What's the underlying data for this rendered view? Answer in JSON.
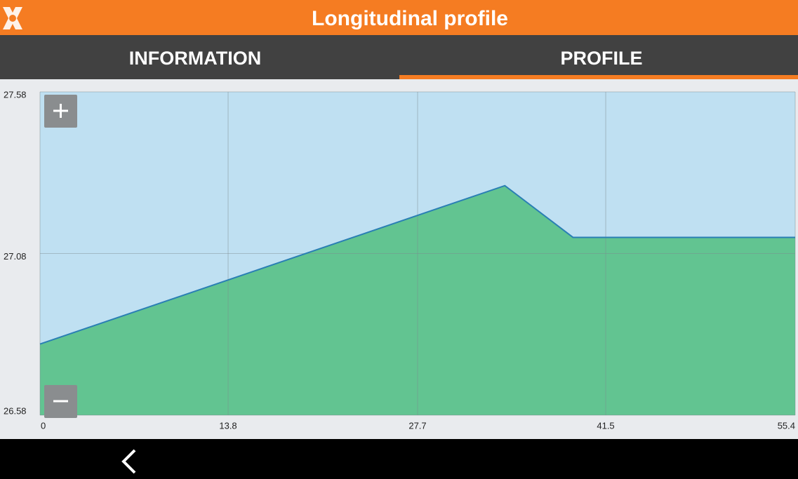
{
  "header": {
    "title": "Longitudinal profile"
  },
  "tabs": [
    "INFORMATION",
    "PROFILE"
  ],
  "chart_data": {
    "type": "area",
    "x": [
      0,
      34.1,
      39.1,
      55.4
    ],
    "values": [
      26.8,
      27.29,
      27.13,
      27.13
    ],
    "color": "#62c491",
    "line_color": "#2a7fb4",
    "background_color": "#bfe0f2",
    "xlim": [
      0,
      55.4
    ],
    "xticks": [
      0,
      13.8,
      27.7,
      41.5,
      55.4
    ],
    "ylim": [
      26.58,
      27.58
    ],
    "yticks": [
      26.58,
      27.08,
      27.58
    ],
    "grid": true
  }
}
